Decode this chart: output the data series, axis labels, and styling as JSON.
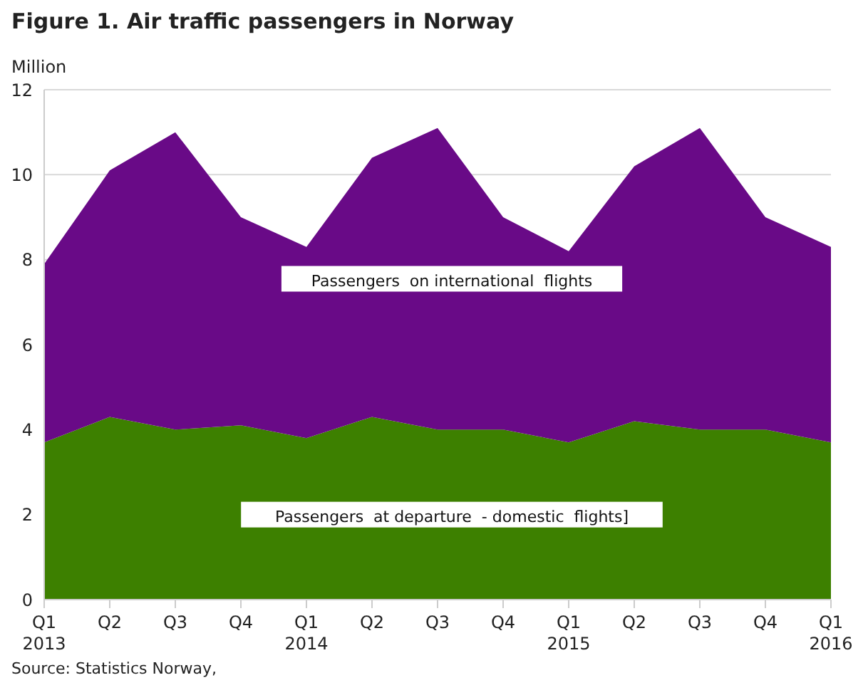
{
  "chart_data": {
    "type": "area",
    "title": "Figure 1. Air traffic passengers in Norway",
    "ylabel": "Million",
    "annotations": [
      "Source: Statistics Norway,"
    ],
    "categories": [
      "Q1 2013",
      "Q2",
      "Q3",
      "Q4",
      "Q1 2014",
      "Q2",
      "Q3",
      "Q4",
      "Q1 2015",
      "Q2",
      "Q3",
      "Q4",
      "Q1 2016"
    ],
    "stacked": true,
    "series": [
      {
        "name": "Passengers  at departure  - domestic  flights]",
        "color": "#3d8000",
        "values": [
          3.7,
          4.3,
          4.0,
          4.1,
          3.8,
          4.3,
          4.0,
          4.0,
          3.7,
          4.2,
          4.0,
          4.0,
          3.7
        ]
      },
      {
        "name": "Passengers  on international  flights",
        "color": "#690a87",
        "values": [
          4.2,
          5.8,
          7.0,
          4.9,
          4.5,
          6.1,
          7.1,
          5.0,
          4.5,
          6.0,
          7.1,
          5.0,
          4.6
        ]
      }
    ],
    "ylim": [
      0,
      12
    ],
    "yticks": [
      0,
      2,
      4,
      6,
      8,
      10,
      12
    ],
    "grid": "y",
    "legend": false
  }
}
